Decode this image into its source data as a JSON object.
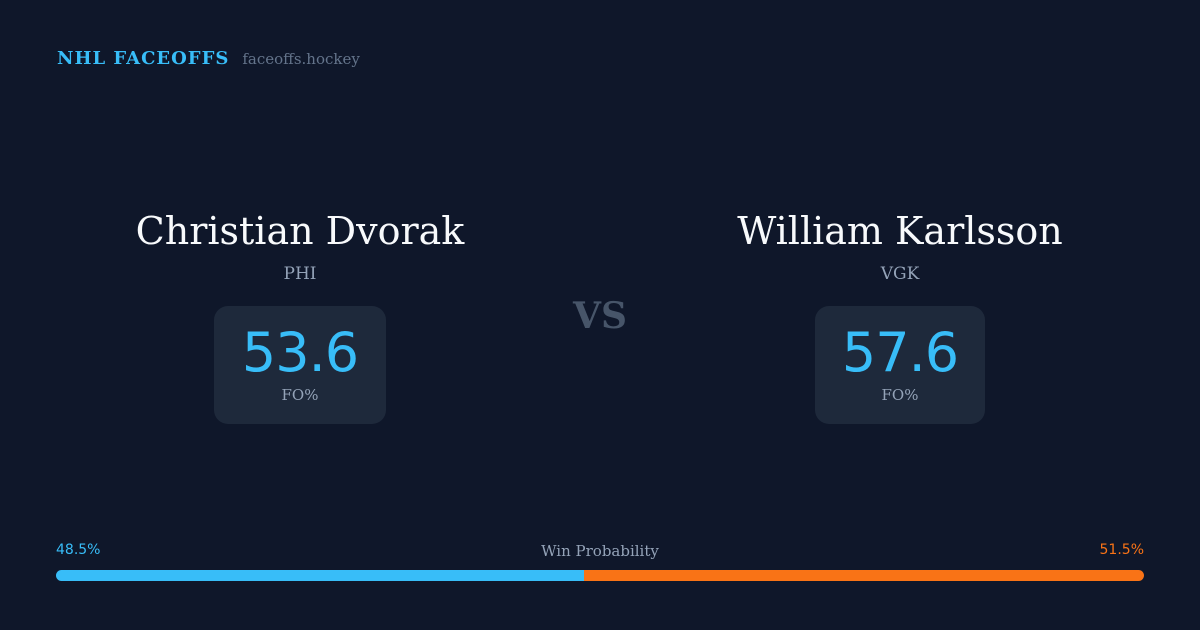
{
  "brand": {
    "name": "NHL FACEOFFS",
    "url": "faceoffs.hockey"
  },
  "players": [
    {
      "name": "Christian Dvorak",
      "team": "PHI",
      "stat_value": "53.6",
      "stat_label": "FO%"
    },
    {
      "name": "William Karlsson",
      "team": "VGK",
      "stat_value": "57.6",
      "stat_label": "FO%"
    }
  ],
  "vs_label": "VS",
  "win_probability": {
    "title": "Win Probability",
    "left_label": "48.5%",
    "right_label": "51.5%",
    "left_value": 48.5,
    "right_value": 51.5
  },
  "colors": {
    "background": "#0f172a",
    "card": "#1e293b",
    "accent_left": "#38bdf8",
    "accent_right": "#f97316",
    "name_text": "#f8fafc",
    "muted_text": "#94a3b8"
  }
}
